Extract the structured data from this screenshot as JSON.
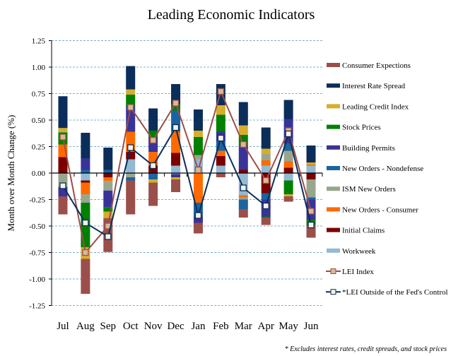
{
  "chart_data": {
    "type": "bar",
    "stacked": true,
    "title": "Leading Economic Indicators",
    "ylabel": "Month over Month Change (%)",
    "xlabel": "",
    "ylim": [
      -1.25,
      1.25
    ],
    "yticks": [
      "1.25",
      "1.00",
      "0.75",
      "0.50",
      "0.25",
      "0.00",
      "-0.25",
      "-0.50",
      "-0.75",
      "-1.00",
      "-1.25"
    ],
    "ytick_values": [
      1.25,
      1.0,
      0.75,
      0.5,
      0.25,
      0,
      -0.25,
      -0.5,
      -0.75,
      -1.0,
      -1.25
    ],
    "grid": true,
    "legend_position": "right",
    "footnote": "* Excludes interest rates, credit spreads, and stock prices",
    "categories": [
      "Jul",
      "Aug",
      "Sep",
      "Oct",
      "Nov",
      "Dec",
      "Jan",
      "Feb",
      "Mar",
      "Apr",
      "May",
      "Jun"
    ],
    "series": [
      {
        "name": "Workweek",
        "color": "#93B9D3",
        "values": [
          0,
          -0.07,
          0,
          0.13,
          0,
          0.07,
          0.13,
          0.07,
          -0.21,
          0.07,
          -0.07,
          0.07
        ]
      },
      {
        "name": "Initial Claims",
        "color": "#7B0000",
        "values": [
          0.15,
          -0.02,
          -0.04,
          0.07,
          0.07,
          0.12,
          0,
          0.09,
          0.03,
          -0.19,
          0.05,
          -0.06
        ]
      },
      {
        "name": "New Orders - Consumer",
        "color": "#FF6A00",
        "values": [
          0.12,
          -0.11,
          -0.035,
          0.19,
          0.13,
          0.2,
          -0.28,
          0.05,
          -0.02,
          0.05,
          0.06,
          0.01
        ]
      },
      {
        "name": "ISM New Orders",
        "color": "#98A68E",
        "values": [
          -0.13,
          -0.08,
          -0.09,
          -0.04,
          0,
          -0.01,
          0.04,
          0,
          -0.02,
          0.06,
          0.1,
          -0.17
        ]
      },
      {
        "name": "New Orders - Nondefense",
        "color": "#1A64A0",
        "values": [
          -0.01,
          0.03,
          0.03,
          -0.03,
          -0.06,
          0.2,
          -0.13,
          0.09,
          -0.09,
          -0.06,
          0.07,
          -0.02
        ]
      },
      {
        "name": "Building Permits",
        "color": "#393399",
        "values": [
          -0.08,
          0.11,
          -0.16,
          0.24,
          0.14,
          -0.03,
          -0.06,
          0.09,
          0.23,
          -0.16,
          0.23,
          -0.19
        ]
      },
      {
        "name": "Stock Prices",
        "color": "#008000",
        "values": [
          0.115,
          -0.42,
          -0.04,
          0.11,
          0.06,
          0.06,
          0.17,
          0.16,
          0.1,
          -0.01,
          -0.13,
          -0.05
        ]
      },
      {
        "name": "Leading Credit Index",
        "color": "#D6AE2B",
        "values": [
          0.04,
          -0.11,
          -0.06,
          0.05,
          -0.03,
          -0.02,
          0.06,
          0.09,
          0.09,
          0.05,
          -0.02,
          0.02
        ]
      },
      {
        "name": "Interest Rate Spread",
        "color": "#0B2D5A",
        "values": [
          0.3,
          0.24,
          0.21,
          0.22,
          0.21,
          0.19,
          0.2,
          0.2,
          0.22,
          0.2,
          0.18,
          0.16
        ]
      },
      {
        "name": "Consumer Expections",
        "color": "#9B4F4A",
        "values": [
          -0.17,
          -0.33,
          -0.32,
          -0.32,
          -0.22,
          -0.12,
          -0.1,
          -0.04,
          -0.08,
          -0.07,
          -0.05,
          -0.12
        ]
      }
    ],
    "lines": [
      {
        "name": "LEI Index",
        "color": "#9B4F4A",
        "marker_fill": "#D8B996",
        "values": [
          0.34,
          -0.75,
          -0.5,
          0.62,
          0.31,
          0.66,
          0.03,
          0.77,
          0.27,
          -0.07,
          0.4,
          -0.36
        ]
      },
      {
        "name": "*LEI Outside of the Fed's Control",
        "color": "#0B2D5A",
        "marker_fill": "#F4F1E6",
        "values": [
          -0.12,
          -0.47,
          -0.6,
          0.24,
          0.07,
          0.43,
          -0.4,
          0.33,
          -0.14,
          -0.31,
          0.37,
          -0.49
        ]
      }
    ],
    "legend_order": [
      "Consumer Expections",
      "Interest Rate Spread",
      "Leading Credit Index",
      "Stock Prices",
      "Building Permits",
      "New Orders - Nondefense",
      "ISM New Orders",
      "New Orders - Consumer",
      "Initial Claims",
      "Workweek",
      "LEI Index",
      "*LEI Outside of the Fed's Control"
    ]
  }
}
